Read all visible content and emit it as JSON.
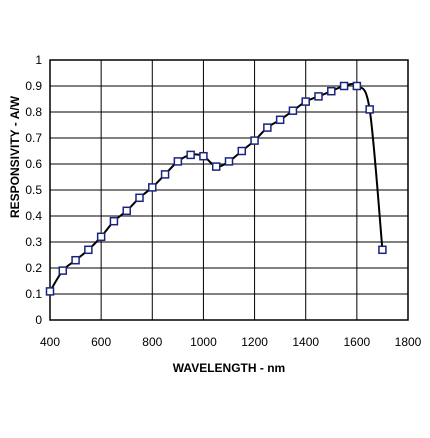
{
  "chart_data": {
    "type": "line",
    "title": "",
    "xlabel": "WAVELENGTH - nm",
    "ylabel": "RESPONSIVITY - A/W",
    "xlim": [
      400,
      1800
    ],
    "ylim": [
      0,
      1
    ],
    "xticks": [
      400,
      600,
      800,
      1000,
      1200,
      1400,
      1600,
      1800
    ],
    "yticks": [
      0,
      0.1,
      0.2,
      0.3,
      0.4,
      0.5,
      0.6,
      0.7,
      0.8,
      0.9,
      1
    ],
    "xtick_labels": [
      "400",
      "600",
      "800",
      "1000",
      "1200",
      "1400",
      "1600",
      "1800"
    ],
    "ytick_labels": [
      "0",
      "0.1",
      "0.2",
      "0.3",
      "0.4",
      "0.5",
      "0.6",
      "0.7",
      "0.8",
      "0.9",
      "1"
    ],
    "grid": true,
    "legend": "none",
    "series": [
      {
        "marker": "square",
        "color": "#000000",
        "marker_edge_color": "#1a237e",
        "x": [
          400,
          450,
          500,
          550,
          600,
          650,
          700,
          750,
          800,
          850,
          900,
          950,
          1000,
          1050,
          1100,
          1150,
          1200,
          1250,
          1300,
          1350,
          1400,
          1450,
          1500,
          1550,
          1600,
          1650,
          1700
        ],
        "y": [
          0.11,
          0.19,
          0.23,
          0.27,
          0.32,
          0.38,
          0.42,
          0.47,
          0.51,
          0.56,
          0.61,
          0.635,
          0.63,
          0.59,
          0.61,
          0.65,
          0.69,
          0.74,
          0.77,
          0.805,
          0.84,
          0.86,
          0.88,
          0.9,
          0.9,
          0.81,
          0.27
        ]
      }
    ]
  }
}
